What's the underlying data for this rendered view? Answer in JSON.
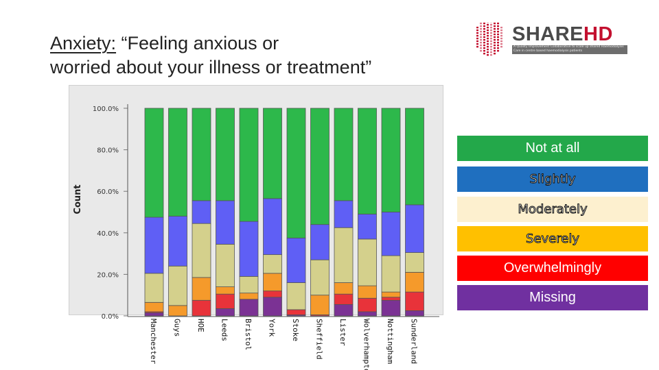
{
  "slide": {
    "title_label": "Anxiety:",
    "title_rest_line1": " “Feeling anxious or",
    "title_line2": "worried about your illness or treatment”"
  },
  "logo": {
    "name_part1": "SHARE",
    "name_part2": "HD",
    "tagline": "A Quality Improvement Collaborative to scale up shared Haemodialysis Care in centre based haemodialysis patients",
    "colors": {
      "mark": "#c3102f",
      "text": "#4a4a4a"
    }
  },
  "legend": [
    {
      "label": "Not at all",
      "color": "#23a84a",
      "text_style": "plain"
    },
    {
      "label": "Slightly",
      "color": "#1f6fbf",
      "text_style": "outlined"
    },
    {
      "label": "Moderately",
      "color": "#fdf0cf",
      "text_style": "outlined"
    },
    {
      "label": "Severely",
      "color": "#ffc000",
      "text_style": "outlined"
    },
    {
      "label": "Overwhelmingly",
      "color": "#ff0000",
      "text_style": "plain"
    },
    {
      "label": "Missing",
      "color": "#7030a0",
      "text_style": "plain"
    }
  ],
  "chart_data": {
    "type": "bar",
    "stacked": true,
    "percent": true,
    "ylabel": "Count",
    "ylim": [
      0,
      100
    ],
    "yticks": [
      "0.0%",
      "20.0%",
      "40.0%",
      "60.0%",
      "80.0%",
      "100.0%"
    ],
    "categories": [
      "Manchester",
      "Guys",
      "HOE",
      "Leeds",
      "Bristol",
      "York",
      "Stoke",
      "Sheffield",
      "Lister",
      "Wolverhampton",
      "Nottingham",
      "Sunderland"
    ],
    "series": [
      {
        "color": "#7b3294",
        "values": [
          1.5,
          0,
          0,
          3.5,
          8,
          9,
          0.5,
          0,
          5.5,
          2,
          7.5,
          2.5
        ]
      },
      {
        "color": "#e8333a",
        "values": [
          0.5,
          0,
          7.5,
          7,
          0,
          3,
          2.5,
          0.5,
          5,
          6.5,
          1.5,
          9
        ]
      },
      {
        "color": "#f59a2b",
        "values": [
          4.5,
          5,
          11,
          3.5,
          3,
          8.5,
          0,
          9.5,
          5.5,
          6,
          2.5,
          9.5
        ]
      },
      {
        "color": "#d4d08c",
        "values": [
          14,
          19,
          26,
          20.5,
          8,
          9,
          13,
          17,
          26.5,
          22.5,
          17.5,
          9.5
        ]
      },
      {
        "color": "#5f5ff5",
        "values": [
          27,
          24,
          11,
          21,
          26.5,
          27,
          21.5,
          17,
          13,
          12,
          21,
          23
        ]
      },
      {
        "color": "#2db84b",
        "values": [
          52.5,
          52,
          44.5,
          44.5,
          54.5,
          43.5,
          62.5,
          56,
          44.5,
          51,
          50,
          46.5
        ]
      }
    ]
  }
}
